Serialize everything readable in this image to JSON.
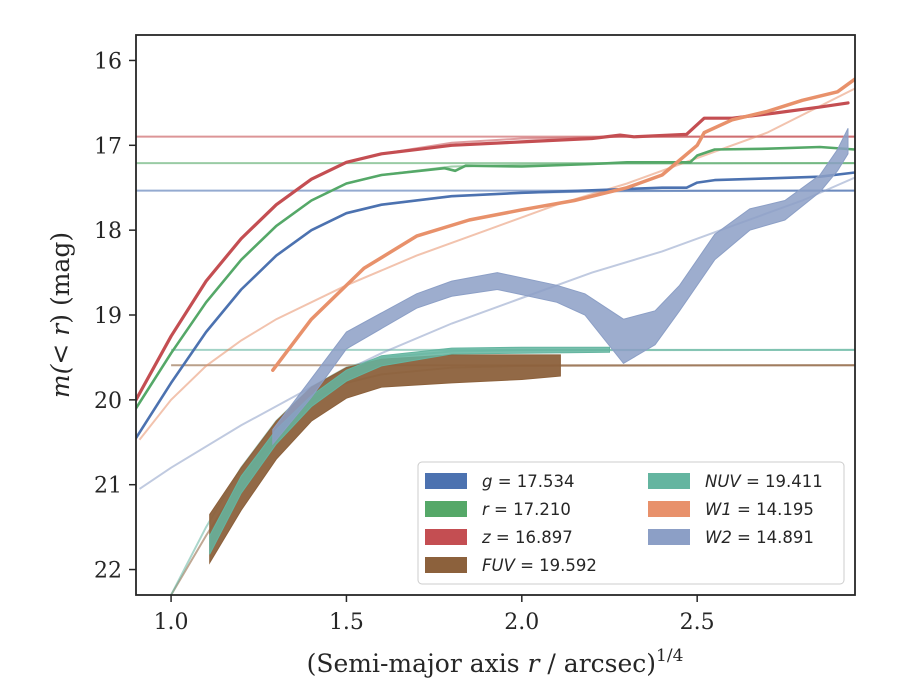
{
  "chart_data": {
    "type": "line",
    "xlabel_main": "(Semi-major axis ",
    "xlabel_var": "r",
    "xlabel_tail": " / arcsec)",
    "xlabel_exp": "1/4",
    "ylabel_main": "m(< ",
    "ylabel_var": "r",
    "ylabel_tail": ") (mag)",
    "xlim": [
      0.9,
      2.95
    ],
    "ylim": [
      22.3,
      15.7
    ],
    "y_inverted": true,
    "xticks": [
      1.0,
      1.5,
      2.0,
      2.5
    ],
    "xtick_labels": [
      "1.0",
      "1.5",
      "2.0",
      "2.5"
    ],
    "yticks": [
      16,
      17,
      18,
      19,
      20,
      21,
      22
    ],
    "ytick_labels": [
      "16",
      "17",
      "18",
      "19",
      "20",
      "21",
      "22"
    ],
    "legend_position": "lower-right",
    "legend_columns": 2,
    "series": [
      {
        "name": "g = 17.534",
        "band": "g",
        "mag": "17.534",
        "color": "#4c72b0",
        "kind": "line",
        "total": 17.534,
        "model_xmin": 0.9,
        "model": [
          [
            0.9,
            20.45
          ],
          [
            1.0,
            19.8
          ],
          [
            1.1,
            19.2
          ],
          [
            1.2,
            18.7
          ],
          [
            1.3,
            18.3
          ],
          [
            1.4,
            18.0
          ],
          [
            1.5,
            17.8
          ],
          [
            1.6,
            17.7
          ],
          [
            1.8,
            17.6
          ],
          [
            2.0,
            17.56
          ],
          [
            2.3,
            17.54
          ],
          [
            2.95,
            17.534
          ]
        ],
        "observed": [
          [
            0.9,
            20.45
          ],
          [
            1.0,
            19.8
          ],
          [
            1.1,
            19.2
          ],
          [
            1.2,
            18.7
          ],
          [
            1.3,
            18.3
          ],
          [
            1.4,
            18.0
          ],
          [
            1.5,
            17.8
          ],
          [
            1.6,
            17.7
          ],
          [
            1.8,
            17.6
          ],
          [
            2.0,
            17.56
          ],
          [
            2.2,
            17.53
          ],
          [
            2.4,
            17.5
          ],
          [
            2.47,
            17.5
          ],
          [
            2.5,
            17.44
          ],
          [
            2.55,
            17.41
          ],
          [
            2.7,
            17.39
          ],
          [
            2.85,
            17.37
          ],
          [
            2.95,
            17.32
          ]
        ]
      },
      {
        "name": "r = 17.210",
        "band": "r",
        "mag": "17.210",
        "color": "#55a868",
        "kind": "line",
        "total": 17.21,
        "model_xmin": 0.9,
        "model": [
          [
            0.9,
            20.1
          ],
          [
            1.0,
            19.45
          ],
          [
            1.1,
            18.85
          ],
          [
            1.2,
            18.35
          ],
          [
            1.3,
            17.95
          ],
          [
            1.4,
            17.65
          ],
          [
            1.5,
            17.45
          ],
          [
            1.6,
            17.35
          ],
          [
            1.8,
            17.25
          ],
          [
            2.0,
            17.23
          ],
          [
            2.3,
            17.215
          ],
          [
            2.95,
            17.21
          ]
        ],
        "observed": [
          [
            0.9,
            20.1
          ],
          [
            1.0,
            19.45
          ],
          [
            1.1,
            18.85
          ],
          [
            1.2,
            18.35
          ],
          [
            1.3,
            17.95
          ],
          [
            1.4,
            17.65
          ],
          [
            1.5,
            17.45
          ],
          [
            1.6,
            17.35
          ],
          [
            1.78,
            17.27
          ],
          [
            1.81,
            17.3
          ],
          [
            1.84,
            17.24
          ],
          [
            2.0,
            17.25
          ],
          [
            2.2,
            17.22
          ],
          [
            2.3,
            17.2
          ],
          [
            2.48,
            17.2
          ],
          [
            2.5,
            17.12
          ],
          [
            2.55,
            17.05
          ],
          [
            2.7,
            17.04
          ],
          [
            2.85,
            17.02
          ],
          [
            2.95,
            17.05
          ]
        ]
      },
      {
        "name": "z = 16.897",
        "band": "z",
        "mag": "16.897",
        "color": "#c44e52",
        "kind": "line",
        "total": 16.897,
        "model_xmin": 0.9,
        "model": [
          [
            0.9,
            20.0
          ],
          [
            1.0,
            19.25
          ],
          [
            1.1,
            18.6
          ],
          [
            1.2,
            18.1
          ],
          [
            1.3,
            17.7
          ],
          [
            1.4,
            17.4
          ],
          [
            1.5,
            17.2
          ],
          [
            1.6,
            17.1
          ],
          [
            1.8,
            16.97
          ],
          [
            2.0,
            16.92
          ],
          [
            2.3,
            16.9
          ],
          [
            2.95,
            16.897
          ]
        ],
        "observed": [
          [
            0.9,
            20.0
          ],
          [
            1.0,
            19.25
          ],
          [
            1.1,
            18.6
          ],
          [
            1.2,
            18.1
          ],
          [
            1.3,
            17.7
          ],
          [
            1.4,
            17.4
          ],
          [
            1.5,
            17.2
          ],
          [
            1.6,
            17.1
          ],
          [
            1.8,
            17.0
          ],
          [
            2.0,
            16.96
          ],
          [
            2.2,
            16.92
          ],
          [
            2.28,
            16.88
          ],
          [
            2.32,
            16.9
          ],
          [
            2.47,
            16.87
          ],
          [
            2.52,
            16.68
          ],
          [
            2.6,
            16.68
          ],
          [
            2.72,
            16.62
          ],
          [
            2.85,
            16.55
          ],
          [
            2.93,
            16.5
          ]
        ]
      },
      {
        "name": "FUV = 19.592",
        "band": "FUV",
        "mag": "19.592",
        "color": "#8c613c",
        "kind": "band",
        "total": 19.592,
        "model_xmin": 1.0,
        "model": [
          [
            1.0,
            22.3
          ],
          [
            1.1,
            21.6
          ],
          [
            1.2,
            20.95
          ],
          [
            1.3,
            20.4
          ],
          [
            1.4,
            20.0
          ],
          [
            1.5,
            19.8
          ],
          [
            1.6,
            19.7
          ],
          [
            1.8,
            19.62
          ],
          [
            2.0,
            19.6
          ],
          [
            2.95,
            19.592
          ]
        ],
        "upper": [
          [
            1.11,
            21.35
          ],
          [
            1.2,
            20.8
          ],
          [
            1.3,
            20.25
          ],
          [
            1.4,
            19.85
          ],
          [
            1.5,
            19.62
          ],
          [
            1.6,
            19.52
          ],
          [
            1.8,
            19.47
          ],
          [
            2.0,
            19.47
          ],
          [
            2.11,
            19.47
          ]
        ],
        "lower": [
          [
            1.11,
            21.92
          ],
          [
            1.2,
            21.3
          ],
          [
            1.3,
            20.7
          ],
          [
            1.4,
            20.25
          ],
          [
            1.5,
            19.98
          ],
          [
            1.6,
            19.85
          ],
          [
            1.8,
            19.8
          ],
          [
            2.0,
            19.76
          ],
          [
            2.11,
            19.72
          ]
        ]
      },
      {
        "name": "NUV = 19.411",
        "band": "NUV",
        "mag": "19.411",
        "color": "#64b5a0",
        "kind": "band",
        "total": 19.411,
        "model_xmin": 1.0,
        "model": [
          [
            1.0,
            22.3
          ],
          [
            1.1,
            21.5
          ],
          [
            1.2,
            20.8
          ],
          [
            1.3,
            20.25
          ],
          [
            1.4,
            19.85
          ],
          [
            1.5,
            19.62
          ],
          [
            1.6,
            19.5
          ],
          [
            1.8,
            19.43
          ],
          [
            2.0,
            19.415
          ],
          [
            2.95,
            19.411
          ]
        ],
        "upper": [
          [
            1.11,
            21.6
          ],
          [
            1.2,
            20.9
          ],
          [
            1.3,
            20.35
          ],
          [
            1.4,
            19.95
          ],
          [
            1.5,
            19.65
          ],
          [
            1.6,
            19.48
          ],
          [
            1.8,
            19.39
          ],
          [
            2.0,
            19.38
          ],
          [
            2.25,
            19.38
          ]
        ],
        "lower": [
          [
            1.11,
            21.82
          ],
          [
            1.2,
            21.1
          ],
          [
            1.3,
            20.52
          ],
          [
            1.4,
            20.08
          ],
          [
            1.5,
            19.78
          ],
          [
            1.6,
            19.6
          ],
          [
            1.8,
            19.46
          ],
          [
            2.0,
            19.45
          ],
          [
            2.25,
            19.44
          ]
        ]
      },
      {
        "name": "W1 = 14.195",
        "band": "W1",
        "mag": "14.195",
        "color": "#e8916b",
        "kind": "line",
        "total": 14.195,
        "model_xmin": 0.9,
        "model": [
          [
            0.91,
            20.47
          ],
          [
            1.0,
            20.0
          ],
          [
            1.1,
            19.6
          ],
          [
            1.2,
            19.3
          ],
          [
            1.3,
            19.05
          ],
          [
            1.5,
            18.65
          ],
          [
            1.7,
            18.3
          ],
          [
            1.9,
            18.0
          ],
          [
            2.1,
            17.7
          ],
          [
            2.3,
            17.45
          ],
          [
            2.5,
            17.15
          ],
          [
            2.7,
            16.85
          ],
          [
            2.95,
            16.33
          ]
        ],
        "observed": [
          [
            1.29,
            19.65
          ],
          [
            1.4,
            19.05
          ],
          [
            1.55,
            18.45
          ],
          [
            1.7,
            18.07
          ],
          [
            1.85,
            17.88
          ],
          [
            2.0,
            17.76
          ],
          [
            2.15,
            17.65
          ],
          [
            2.3,
            17.5
          ],
          [
            2.4,
            17.35
          ],
          [
            2.5,
            17.0
          ],
          [
            2.52,
            16.85
          ],
          [
            2.6,
            16.7
          ],
          [
            2.7,
            16.6
          ],
          [
            2.8,
            16.47
          ],
          [
            2.9,
            16.37
          ],
          [
            2.95,
            16.22
          ]
        ]
      },
      {
        "name": "W2 = 14.891",
        "band": "W2",
        "mag": "14.891",
        "color": "#8c9fc6",
        "kind": "band",
        "total": 14.891,
        "model_xmin": 0.9,
        "model": [
          [
            0.91,
            21.05
          ],
          [
            1.0,
            20.8
          ],
          [
            1.2,
            20.3
          ],
          [
            1.4,
            19.85
          ],
          [
            1.6,
            19.45
          ],
          [
            1.8,
            19.1
          ],
          [
            2.0,
            18.8
          ],
          [
            2.2,
            18.5
          ],
          [
            2.4,
            18.25
          ],
          [
            2.6,
            17.95
          ],
          [
            2.8,
            17.65
          ],
          [
            2.95,
            17.38
          ]
        ],
        "upper": [
          [
            1.29,
            20.35
          ],
          [
            1.4,
            19.75
          ],
          [
            1.5,
            19.2
          ],
          [
            1.7,
            18.75
          ],
          [
            1.8,
            18.6
          ],
          [
            1.93,
            18.5
          ],
          [
            2.1,
            18.65
          ],
          [
            2.18,
            18.75
          ],
          [
            2.29,
            19.05
          ],
          [
            2.38,
            18.95
          ],
          [
            2.45,
            18.65
          ],
          [
            2.55,
            18.05
          ],
          [
            2.65,
            17.75
          ],
          [
            2.75,
            17.65
          ],
          [
            2.85,
            17.35
          ],
          [
            2.9,
            17.05
          ],
          [
            2.93,
            16.8
          ]
        ],
        "lower": [
          [
            1.29,
            20.52
          ],
          [
            1.4,
            19.97
          ],
          [
            1.5,
            19.4
          ],
          [
            1.7,
            18.92
          ],
          [
            1.8,
            18.78
          ],
          [
            1.93,
            18.7
          ],
          [
            2.1,
            18.85
          ],
          [
            2.18,
            19.0
          ],
          [
            2.29,
            19.57
          ],
          [
            2.38,
            19.35
          ],
          [
            2.45,
            18.95
          ],
          [
            2.55,
            18.35
          ],
          [
            2.65,
            18.0
          ],
          [
            2.75,
            17.88
          ],
          [
            2.85,
            17.55
          ],
          [
            2.9,
            17.3
          ],
          [
            2.93,
            17.1
          ]
        ]
      }
    ]
  }
}
